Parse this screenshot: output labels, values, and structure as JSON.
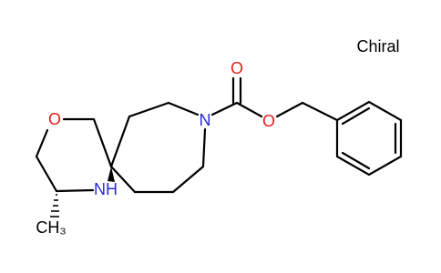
{
  "chiral_flag": "Chiral",
  "atoms": [
    {
      "label": "O"
    },
    {
      "label": "NH"
    },
    {
      "label": "CH₃"
    },
    {
      "label": "N"
    },
    {
      "label": "O"
    },
    {
      "label": "O"
    }
  ]
}
